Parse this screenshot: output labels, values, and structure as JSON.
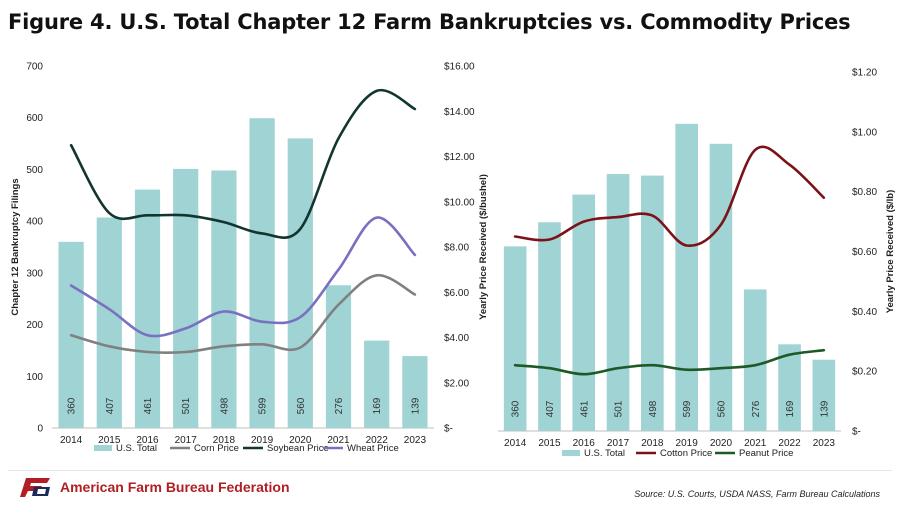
{
  "title": "Figure 4. U.S. Total Chapter 12 Farm Bankruptcies vs. Commodity Prices",
  "source": "Source: U.S. Courts, USDA NASS, Farm Bureau Calculations",
  "organization": "American Farm Bureau Federation",
  "colors": {
    "bar": "#9fd3d4",
    "corn": "#808080",
    "soybean": "#133530",
    "wheat": "#7a70c0",
    "cotton": "#7a1218",
    "peanut": "#1e5a27",
    "brand": "#b01f24"
  },
  "chart_data": [
    {
      "type": "bar+line",
      "categories": [
        "2014",
        "2015",
        "2016",
        "2017",
        "2018",
        "2019",
        "2020",
        "2021",
        "2022",
        "2023"
      ],
      "ylabel": "Chapter 12 Bankruptcy Filings",
      "y2label": "Yearly Price Received ($/bushel)",
      "ylim": [
        0,
        700
      ],
      "y2lim": [
        0,
        16
      ],
      "yticks": [
        "0",
        "100",
        "200",
        "300",
        "400",
        "500",
        "600",
        "700"
      ],
      "y2ticks": [
        "$-",
        "$2.00",
        "$4.00",
        "$6.00",
        "$8.00",
        "$10.00",
        "$12.00",
        "$14.00",
        "$16.00"
      ],
      "legend_position": "bottom",
      "bars": {
        "name": "U.S. Total",
        "values": [
          360,
          407,
          461,
          501,
          498,
          599,
          560,
          276,
          169,
          139
        ],
        "labels": [
          "360",
          "407",
          "461",
          "501",
          "498",
          "599",
          "560",
          "276",
          "169",
          "139"
        ]
      },
      "series": [
        {
          "name": "Corn Price",
          "color_key": "corn",
          "values": [
            4.1,
            3.61,
            3.36,
            3.36,
            3.61,
            3.7,
            3.56,
            5.45,
            6.75,
            5.9
          ]
        },
        {
          "name": "Soybean Price",
          "color_key": "soybean",
          "values": [
            12.5,
            9.5,
            9.4,
            9.4,
            9.1,
            8.6,
            8.8,
            12.8,
            14.9,
            14.1
          ]
        },
        {
          "name": "Wheat Price",
          "color_key": "wheat",
          "values": [
            6.3,
            5.25,
            4.1,
            4.4,
            5.15,
            4.7,
            4.9,
            7.0,
            9.3,
            7.65
          ]
        }
      ]
    },
    {
      "type": "bar+line",
      "categories": [
        "2014",
        "2015",
        "2016",
        "2017",
        "2018",
        "2019",
        "2020",
        "2021",
        "2022",
        "2023"
      ],
      "y2label": "Yearly Price Received ($/lb)",
      "ylim": [
        0,
        700
      ],
      "y2lim": [
        0,
        1.2
      ],
      "y2ticks": [
        "$-",
        "$0.20",
        "$0.40",
        "$0.60",
        "$0.80",
        "$1.00",
        "$1.20"
      ],
      "legend_position": "bottom",
      "bars": {
        "name": "U.S. Total",
        "values": [
          360,
          407,
          461,
          501,
          498,
          599,
          560,
          276,
          169,
          139
        ],
        "labels": [
          "360",
          "407",
          "461",
          "501",
          "498",
          "599",
          "560",
          "276",
          "169",
          "139"
        ]
      },
      "series": [
        {
          "name": "Cotton Price",
          "color_key": "cotton",
          "values": [
            0.65,
            0.64,
            0.7,
            0.715,
            0.72,
            0.62,
            0.69,
            0.94,
            0.89,
            0.78
          ]
        },
        {
          "name": "Peanut Price",
          "color_key": "peanut",
          "values": [
            0.22,
            0.21,
            0.19,
            0.21,
            0.22,
            0.205,
            0.21,
            0.22,
            0.255,
            0.27
          ]
        }
      ]
    }
  ]
}
